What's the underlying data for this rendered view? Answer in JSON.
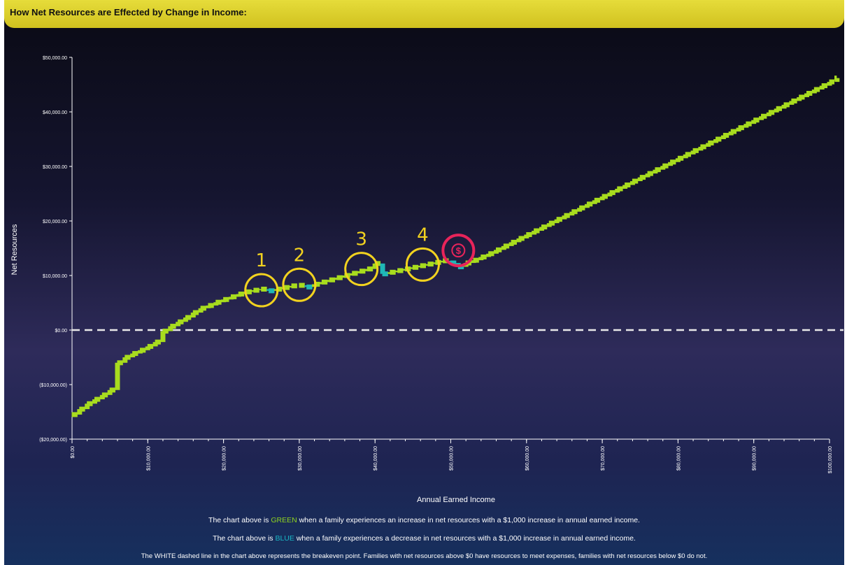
{
  "title": "How Net Resources are Effected by Change in Income:",
  "colors": {
    "increase": "#a8dc1e",
    "decrease": "#1fb7b7",
    "breakeven_line": "#e8e8e8",
    "callout_yellow": "#f2d21f",
    "callout_red": "#e8245a",
    "title_bar": "#d9cb28"
  },
  "chart_data": {
    "type": "line",
    "xlabel": "Annual Earned Income",
    "ylabel": "Net Resources",
    "xlim": [
      0,
      100000
    ],
    "ylim": [
      -20000,
      50000
    ],
    "y_ticks": [
      {
        "value": 50000,
        "label": "$50,000.00"
      },
      {
        "value": 40000,
        "label": "$40,000.00"
      },
      {
        "value": 30000,
        "label": "$30,000.00"
      },
      {
        "value": 20000,
        "label": "$20,000.00"
      },
      {
        "value": 10000,
        "label": "$10,000.00"
      },
      {
        "value": 0,
        "label": "$0.00"
      },
      {
        "value": -10000,
        "label": "($10,000.00)"
      },
      {
        "value": -20000,
        "label": "($20,000.00)"
      }
    ],
    "x_ticks": [
      {
        "value": 0,
        "label": "$0.00"
      },
      {
        "value": 10000,
        "label": "$10,000.00"
      },
      {
        "value": 20000,
        "label": "$20,000.00"
      },
      {
        "value": 30000,
        "label": "$30,000.00"
      },
      {
        "value": 40000,
        "label": "$40,000.00"
      },
      {
        "value": 50000,
        "label": "$50,000.00"
      },
      {
        "value": 60000,
        "label": "$60,000.00"
      },
      {
        "value": 70000,
        "label": "$70,000.00"
      },
      {
        "value": 80000,
        "label": "$80,000.00"
      },
      {
        "value": 90000,
        "label": "$90,000.00"
      },
      {
        "value": 100000,
        "label": "$100,000.00"
      }
    ],
    "breakeven": 0,
    "series": [
      {
        "x": [
          0,
          1000,
          2000,
          3000,
          4000,
          5000,
          6000,
          7000,
          8000,
          9000,
          10000,
          11000,
          12000,
          13000,
          14000,
          15000,
          16000,
          17000,
          18000,
          19000,
          20000,
          21000,
          22000,
          23000,
          24000,
          25000,
          26000,
          27000,
          28000,
          29000,
          30000,
          31000,
          32000,
          33000,
          34000,
          35000,
          36000,
          37000,
          38000,
          39000,
          40000,
          41000,
          42000,
          43000,
          44000,
          45000,
          46000,
          47000,
          48000,
          49000,
          50000,
          51000,
          52000,
          53000,
          54000,
          55000,
          56000,
          57000,
          58000,
          59000,
          60000,
          61000,
          62000,
          63000,
          64000,
          65000,
          66000,
          67000,
          68000,
          69000,
          70000,
          71000,
          72000,
          73000,
          74000,
          75000,
          76000,
          77000,
          78000,
          79000,
          80000,
          81000,
          82000,
          83000,
          84000,
          85000,
          86000,
          87000,
          88000,
          89000,
          90000,
          91000,
          92000,
          93000,
          94000,
          95000,
          96000,
          97000,
          98000,
          99000,
          100000,
          101000
        ],
        "y": [
          -15500,
          -14500,
          -13500,
          -12700,
          -11900,
          -11000,
          -6000,
          -5000,
          -4300,
          -3700,
          -3000,
          -2200,
          -200,
          700,
          1500,
          2300,
          3200,
          4000,
          4500,
          5100,
          5600,
          6100,
          6600,
          7000,
          7300,
          7500,
          7200,
          7500,
          7800,
          8100,
          8200,
          7900,
          8400,
          8800,
          9200,
          9600,
          10000,
          10400,
          10800,
          11200,
          12200,
          10300,
          10600,
          10900,
          11200,
          11500,
          11800,
          12100,
          12400,
          12700,
          12300,
          11600,
          12300,
          12800,
          13400,
          14000,
          14700,
          15400,
          16100,
          16800,
          17500,
          18200,
          18900,
          19600,
          20300,
          21000,
          21700,
          22400,
          23100,
          23800,
          24500,
          25200,
          25900,
          26600,
          27300,
          28000,
          28700,
          29400,
          30100,
          30800,
          31500,
          32200,
          32900,
          33600,
          34300,
          35000,
          35700,
          36400,
          37100,
          37800,
          38500,
          39200,
          39900,
          40600,
          41300,
          42000,
          42700,
          43400,
          44100,
          44800,
          45500,
          46200
        ]
      }
    ],
    "callouts": [
      {
        "label": "1",
        "x": 25000,
        "y": 7300
      },
      {
        "label": "2",
        "x": 30000,
        "y": 8300
      },
      {
        "label": "3",
        "x": 38200,
        "y": 11200
      },
      {
        "label": "4",
        "x": 46300,
        "y": 12000
      },
      {
        "label": "$",
        "x": 51000,
        "y": 14600
      }
    ]
  },
  "captions": {
    "line1_prefix": "The chart above is ",
    "line1_highlight": "GREEN",
    "line1_suffix": " when a family experiences an increase in net resources with a $1,000 increase in annual earned income.",
    "line2_prefix": "The chart above is ",
    "line2_highlight": "BLUE",
    "line2_suffix": " when a family experiences a decrease in net resources with a $1,000 increase in annual earned income.",
    "line3": "The WHITE dashed line in the chart above represents the breakeven point. Families with net resources above $0 have resources to meet expenses, families with net resources below $0 do not."
  }
}
